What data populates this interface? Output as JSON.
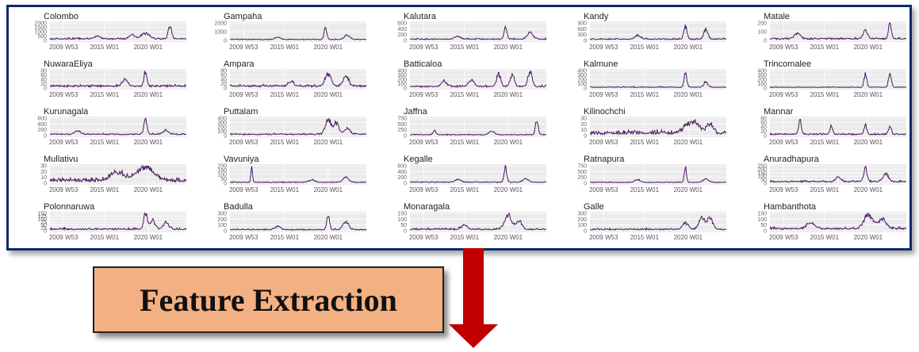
{
  "chart_data": {
    "type": "line",
    "series_color": "#4b1760",
    "grid": true,
    "x_ticks": [
      "2009 W53",
      "2015 W01",
      "2020 W01"
    ],
    "panels": [
      {
        "title": "Colombo",
        "y_ticks": [
          "2000",
          "1500",
          "1000",
          "500",
          "0"
        ],
        "ymax": 2200,
        "peaks": [
          {
            "at": 0.88,
            "v": 1600,
            "w": 0.012
          },
          {
            "at": 0.7,
            "v": 700,
            "w": 0.03
          },
          {
            "at": 0.6,
            "v": 500,
            "w": 0.02
          },
          {
            "at": 0.35,
            "v": 350,
            "w": 0.02
          }
        ],
        "base": 180,
        "noise": 120
      },
      {
        "title": "Gampaha",
        "y_ticks": [
          "2000",
          "1000",
          "0"
        ],
        "ymax": 2400,
        "peaks": [
          {
            "at": 0.7,
            "v": 1500,
            "w": 0.01
          },
          {
            "at": 0.86,
            "v": 600,
            "w": 0.02
          },
          {
            "at": 0.35,
            "v": 300,
            "w": 0.02
          }
        ],
        "base": 120,
        "noise": 80
      },
      {
        "title": "Kalutara",
        "y_ticks": [
          "600",
          "400",
          "200",
          "0"
        ],
        "ymax": 650,
        "peaks": [
          {
            "at": 0.7,
            "v": 500,
            "w": 0.01
          },
          {
            "at": 0.88,
            "v": 250,
            "w": 0.02
          },
          {
            "at": 0.35,
            "v": 120,
            "w": 0.02
          }
        ],
        "base": 40,
        "noise": 40
      },
      {
        "title": "Kandy",
        "y_ticks": [
          "900",
          "600",
          "300",
          "0"
        ],
        "ymax": 950,
        "peaks": [
          {
            "at": 0.7,
            "v": 700,
            "w": 0.012
          },
          {
            "at": 0.85,
            "v": 500,
            "w": 0.015
          },
          {
            "at": 0.35,
            "v": 200,
            "w": 0.02
          }
        ],
        "base": 60,
        "noise": 60
      },
      {
        "title": "Matale",
        "y_ticks": [
          "200",
          "100",
          "0"
        ],
        "ymax": 240,
        "peaks": [
          {
            "at": 0.88,
            "v": 230,
            "w": 0.01
          },
          {
            "at": 0.7,
            "v": 120,
            "w": 0.015
          },
          {
            "at": 0.2,
            "v": 80,
            "w": 0.02
          }
        ],
        "base": 20,
        "noise": 20
      },
      {
        "title": "NuwaraEliya",
        "y_ticks": [
          "80",
          "60",
          "40",
          "20",
          "0"
        ],
        "ymax": 85,
        "peaks": [
          {
            "at": 0.7,
            "v": 75,
            "w": 0.01
          },
          {
            "at": 0.55,
            "v": 30,
            "w": 0.02
          }
        ],
        "base": 8,
        "noise": 8
      },
      {
        "title": "Ampara",
        "y_ticks": [
          "80",
          "60",
          "40",
          "20",
          "0"
        ],
        "ymax": 85,
        "peaks": [
          {
            "at": 0.72,
            "v": 65,
            "w": 0.02
          },
          {
            "at": 0.85,
            "v": 45,
            "w": 0.02
          },
          {
            "at": 0.45,
            "v": 20,
            "w": 0.02
          }
        ],
        "base": 8,
        "noise": 10
      },
      {
        "title": "Batticaloa",
        "y_ticks": [
          "400",
          "300",
          "200",
          "100",
          "0"
        ],
        "ymax": 420,
        "peaks": [
          {
            "at": 0.65,
            "v": 300,
            "w": 0.015
          },
          {
            "at": 0.75,
            "v": 280,
            "w": 0.015
          },
          {
            "at": 0.88,
            "v": 350,
            "w": 0.015
          },
          {
            "at": 0.45,
            "v": 150,
            "w": 0.02
          },
          {
            "at": 0.25,
            "v": 120,
            "w": 0.02
          }
        ],
        "base": 30,
        "noise": 40
      },
      {
        "title": "Kalmune",
        "y_ticks": [
          "400",
          "300",
          "200",
          "100",
          "0"
        ],
        "ymax": 420,
        "peaks": [
          {
            "at": 0.7,
            "v": 330,
            "w": 0.01
          },
          {
            "at": 0.85,
            "v": 120,
            "w": 0.015
          }
        ],
        "base": 15,
        "noise": 20
      },
      {
        "title": "Trincomalee",
        "y_ticks": [
          "400",
          "300",
          "200",
          "100",
          "0"
        ],
        "ymax": 420,
        "peaks": [
          {
            "at": 0.7,
            "v": 320,
            "w": 0.01
          },
          {
            "at": 0.88,
            "v": 340,
            "w": 0.01
          }
        ],
        "base": 15,
        "noise": 15
      },
      {
        "title": "Kurunagala",
        "y_ticks": [
          "600",
          "400",
          "200",
          "0"
        ],
        "ymax": 650,
        "peaks": [
          {
            "at": 0.7,
            "v": 520,
            "w": 0.012
          },
          {
            "at": 0.85,
            "v": 150,
            "w": 0.02
          },
          {
            "at": 0.2,
            "v": 120,
            "w": 0.02
          }
        ],
        "base": 40,
        "noise": 40
      },
      {
        "title": "Puttalam",
        "y_ticks": [
          "400",
          "300",
          "200",
          "100",
          "0"
        ],
        "ymax": 420,
        "peaks": [
          {
            "at": 0.72,
            "v": 360,
            "w": 0.02
          },
          {
            "at": 0.78,
            "v": 250,
            "w": 0.02
          },
          {
            "at": 0.86,
            "v": 150,
            "w": 0.02
          }
        ],
        "base": 25,
        "noise": 30
      },
      {
        "title": "Jaffna",
        "y_ticks": [
          "750",
          "500",
          "250",
          "0"
        ],
        "ymax": 800,
        "peaks": [
          {
            "at": 0.93,
            "v": 700,
            "w": 0.01
          },
          {
            "at": 0.18,
            "v": 200,
            "w": 0.01
          },
          {
            "at": 0.6,
            "v": 150,
            "w": 0.02
          }
        ],
        "base": 30,
        "noise": 40
      },
      {
        "title": "Kilinochchi",
        "y_ticks": [
          "30",
          "20",
          "10",
          "0"
        ],
        "ymax": 32,
        "peaks": [
          {
            "at": 0.75,
            "v": 20,
            "w": 0.05
          },
          {
            "at": 0.88,
            "v": 18,
            "w": 0.02
          }
        ],
        "base": 3,
        "noise": 8
      },
      {
        "title": "Mannar",
        "y_ticks": [
          "80",
          "60",
          "40",
          "20",
          "0"
        ],
        "ymax": 85,
        "peaks": [
          {
            "at": 0.22,
            "v": 70,
            "w": 0.01
          },
          {
            "at": 0.45,
            "v": 40,
            "w": 0.01
          },
          {
            "at": 0.7,
            "v": 45,
            "w": 0.01
          },
          {
            "at": 0.88,
            "v": 40,
            "w": 0.01
          }
        ],
        "base": 5,
        "noise": 8
      },
      {
        "title": "Mullativu",
        "y_ticks": [
          "30",
          "20",
          "10",
          "0"
        ],
        "ymax": 32,
        "peaks": [
          {
            "at": 0.7,
            "v": 25,
            "w": 0.06
          },
          {
            "at": 0.5,
            "v": 15,
            "w": 0.05
          }
        ],
        "base": 3,
        "noise": 9
      },
      {
        "title": "Vavuniya",
        "y_ticks": [
          "200",
          "150",
          "100",
          "50",
          "0"
        ],
        "ymax": 210,
        "peaks": [
          {
            "at": 0.16,
            "v": 190,
            "w": 0.006
          },
          {
            "at": 0.85,
            "v": 60,
            "w": 0.02
          },
          {
            "at": 0.6,
            "v": 30,
            "w": 0.02
          }
        ],
        "base": 8,
        "noise": 10
      },
      {
        "title": "Kegalle",
        "y_ticks": [
          "600",
          "400",
          "200",
          "0"
        ],
        "ymax": 650,
        "peaks": [
          {
            "at": 0.7,
            "v": 560,
            "w": 0.01
          },
          {
            "at": 0.35,
            "v": 100,
            "w": 0.02
          },
          {
            "at": 0.85,
            "v": 120,
            "w": 0.02
          }
        ],
        "base": 30,
        "noise": 30
      },
      {
        "title": "Ratnapura",
        "y_ticks": [
          "750",
          "500",
          "250",
          "0"
        ],
        "ymax": 800,
        "peaks": [
          {
            "at": 0.7,
            "v": 700,
            "w": 0.008
          },
          {
            "at": 0.85,
            "v": 150,
            "w": 0.02
          },
          {
            "at": 0.35,
            "v": 120,
            "w": 0.02
          }
        ],
        "base": 30,
        "noise": 30
      },
      {
        "title": "Anuradhapura",
        "y_ticks": [
          "250",
          "200",
          "150",
          "100",
          "50",
          "0"
        ],
        "ymax": 260,
        "peaks": [
          {
            "at": 0.7,
            "v": 200,
            "w": 0.012
          },
          {
            "at": 0.85,
            "v": 110,
            "w": 0.02
          },
          {
            "at": 0.5,
            "v": 60,
            "w": 0.02
          }
        ],
        "base": 20,
        "noise": 20
      },
      {
        "title": "Polonnaruwa",
        "y_ticks": [
          "150",
          "125",
          "100",
          "75",
          "50",
          "25",
          "0"
        ],
        "ymax": 160,
        "peaks": [
          {
            "at": 0.7,
            "v": 150,
            "w": 0.012
          },
          {
            "at": 0.75,
            "v": 80,
            "w": 0.02
          },
          {
            "at": 0.85,
            "v": 60,
            "w": 0.02
          }
        ],
        "base": 12,
        "noise": 15
      },
      {
        "title": "Badulla",
        "y_ticks": [
          "300",
          "200",
          "100",
          "0"
        ],
        "ymax": 320,
        "peaks": [
          {
            "at": 0.72,
            "v": 280,
            "w": 0.01
          },
          {
            "at": 0.85,
            "v": 150,
            "w": 0.02
          },
          {
            "at": 0.35,
            "v": 60,
            "w": 0.02
          }
        ],
        "base": 15,
        "noise": 20
      },
      {
        "title": "Monaragala",
        "y_ticks": [
          "150",
          "100",
          "50",
          "0"
        ],
        "ymax": 160,
        "peaks": [
          {
            "at": 0.72,
            "v": 140,
            "w": 0.025
          },
          {
            "at": 0.8,
            "v": 80,
            "w": 0.02
          },
          {
            "at": 0.4,
            "v": 40,
            "w": 0.02
          }
        ],
        "base": 10,
        "noise": 15
      },
      {
        "title": "Galle",
        "y_ticks": [
          "300",
          "200",
          "100",
          "0"
        ],
        "ymax": 320,
        "peaks": [
          {
            "at": 0.82,
            "v": 230,
            "w": 0.02
          },
          {
            "at": 0.88,
            "v": 200,
            "w": 0.02
          },
          {
            "at": 0.7,
            "v": 120,
            "w": 0.02
          }
        ],
        "base": 20,
        "noise": 25
      },
      {
        "title": "Hambanthota",
        "y_ticks": [
          "150",
          "100",
          "50",
          "0"
        ],
        "ymax": 160,
        "peaks": [
          {
            "at": 0.72,
            "v": 130,
            "w": 0.03
          },
          {
            "at": 0.82,
            "v": 90,
            "w": 0.03
          },
          {
            "at": 0.3,
            "v": 50,
            "w": 0.03
          }
        ],
        "base": 15,
        "noise": 20
      }
    ]
  },
  "callout": {
    "label": "Feature Extraction",
    "fill_color": "#f3b083",
    "arrow_color": "#c00000",
    "arrow_icon": "arrow-down-icon"
  }
}
